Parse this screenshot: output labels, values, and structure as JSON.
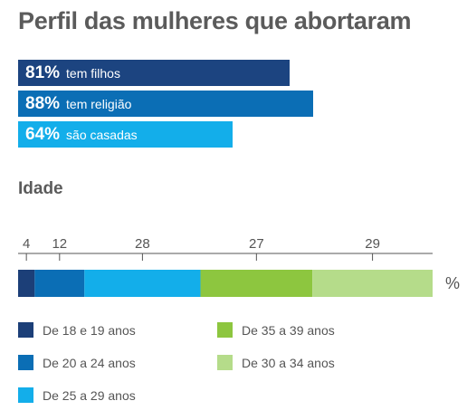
{
  "title": "Perfil das mulheres que abortaram",
  "profile_bars": [
    {
      "value": 81,
      "pct_text": "81%",
      "label": "tem filhos",
      "color": "#1c4480"
    },
    {
      "value": 88,
      "pct_text": "88%",
      "label": "tem religião",
      "color": "#0b6eb5"
    },
    {
      "value": 64,
      "pct_text": "64%",
      "label": "são casadas",
      "color": "#13aeea"
    }
  ],
  "age_section_title": "Idade",
  "chart_data": {
    "type": "bar",
    "stacked": true,
    "orientation": "horizontal",
    "unit_label": "%",
    "series": [
      {
        "name": "De 18 e 19 anos",
        "value": 4,
        "color": "#1c3f78"
      },
      {
        "name": "De 20 a 24 anos",
        "value": 12,
        "color": "#0b6eb5"
      },
      {
        "name": "De 25 a 29 anos",
        "value": 28,
        "color": "#13aeea"
      },
      {
        "name": "De 35 a 39 anos",
        "value": 27,
        "color": "#8dc63f"
      },
      {
        "name": "De 30 a 34 anos",
        "value": 29,
        "color": "#b5dc8a"
      }
    ],
    "tick_labels": [
      "4",
      "12",
      "28",
      "27",
      "29"
    ]
  },
  "legend": [
    {
      "label": "De 18 e 19 anos",
      "color": "#1c3f78"
    },
    {
      "label": "De 20 a 24 anos",
      "color": "#0b6eb5"
    },
    {
      "label": "De 25 a 29 anos",
      "color": "#13aeea"
    },
    {
      "label": "De 35 a 39 anos",
      "color": "#8dc63f"
    },
    {
      "label": "De 30 a 34 anos",
      "color": "#b5dc8a"
    }
  ]
}
